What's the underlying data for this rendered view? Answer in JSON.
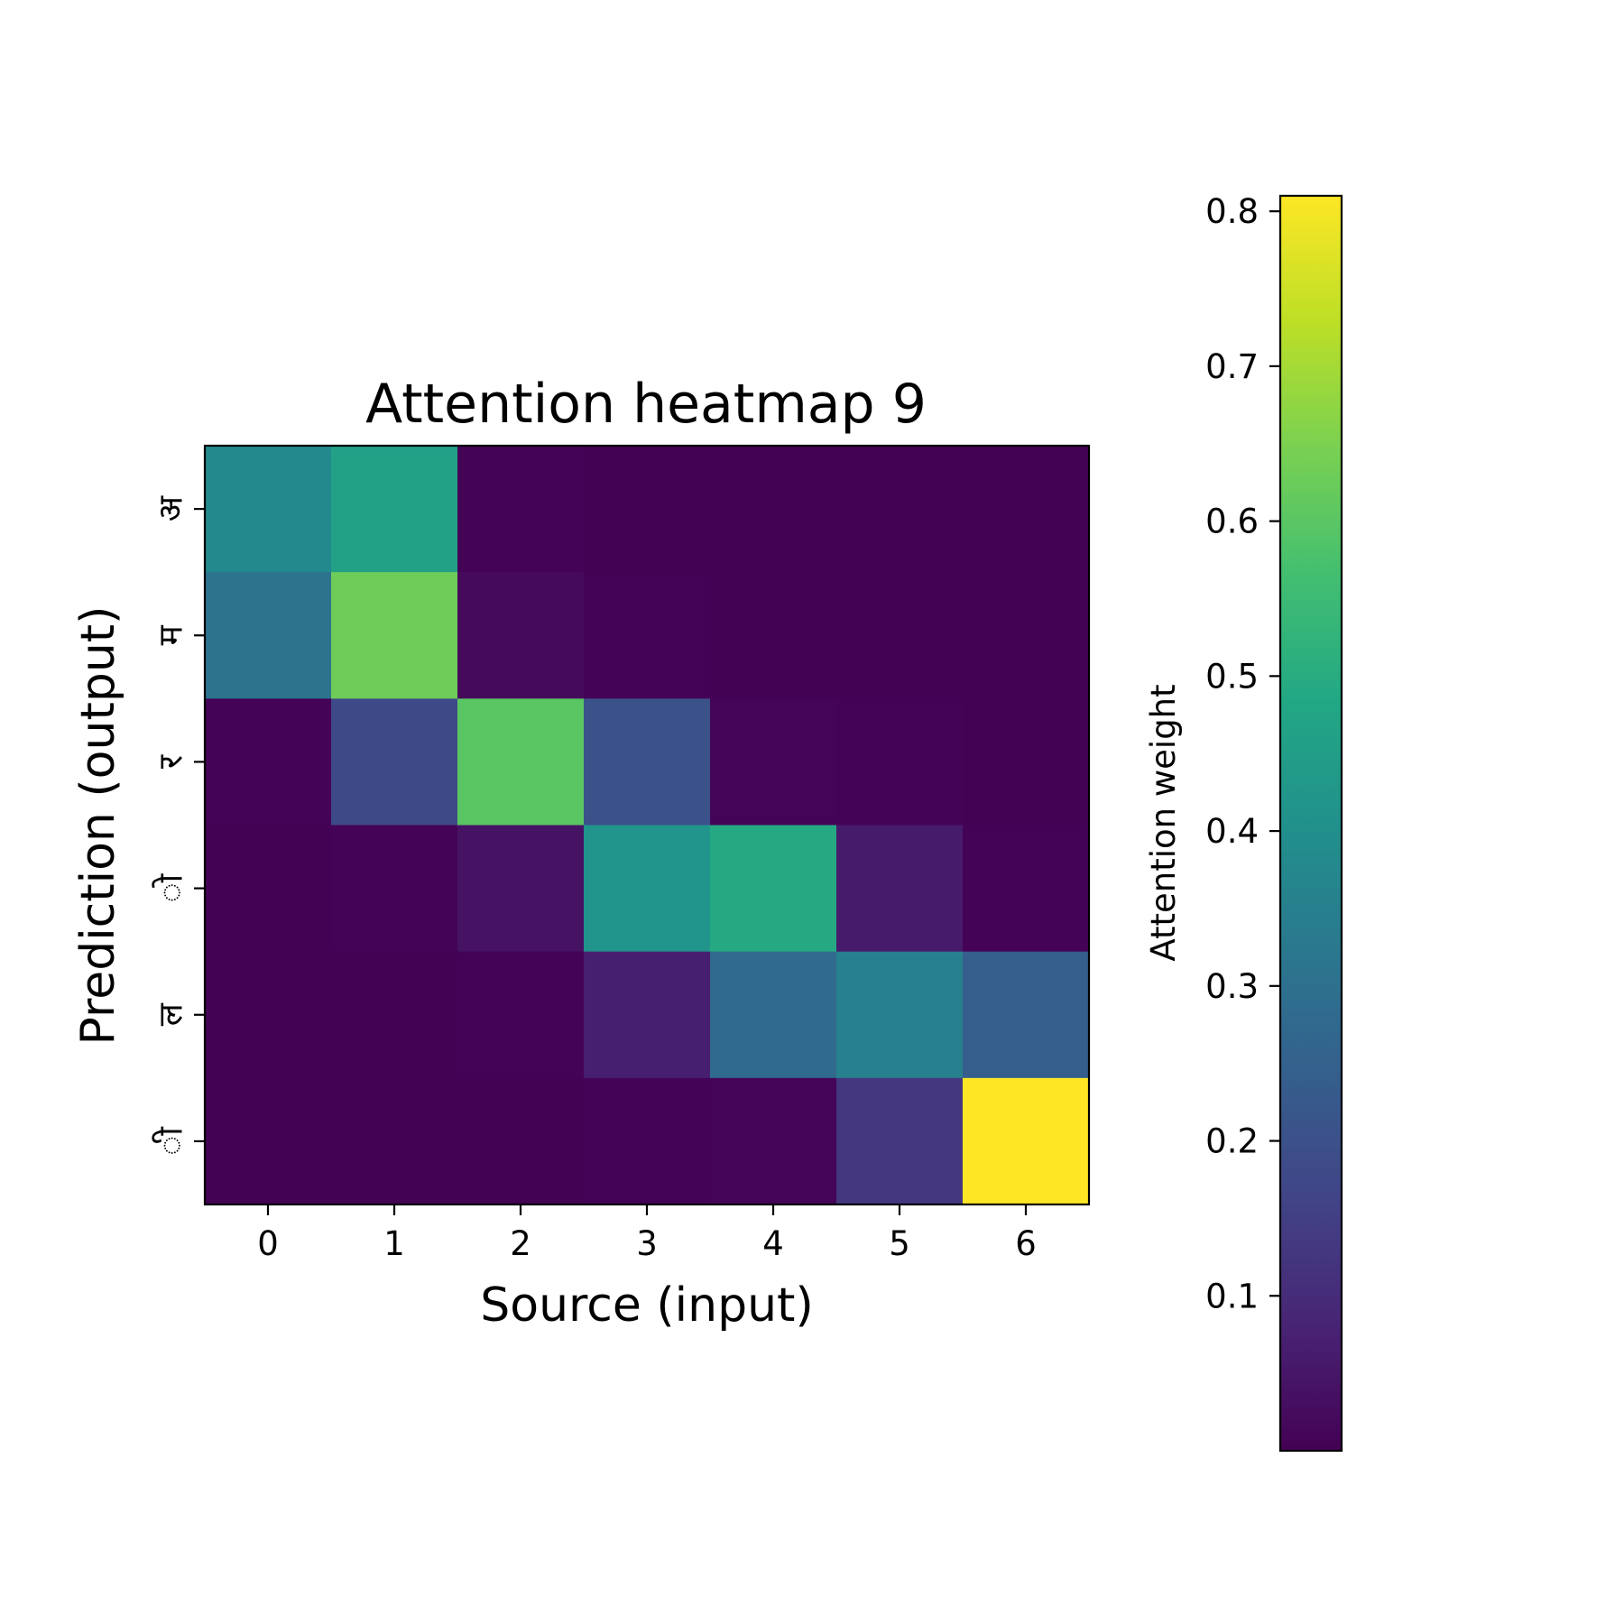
{
  "chart_data": {
    "type": "heatmap",
    "title": "Attention heatmap 9",
    "xlabel": "Source (input)",
    "ylabel": "Prediction (output)",
    "x_categories": [
      "0",
      "1",
      "2",
      "3",
      "4",
      "5",
      "6"
    ],
    "y_categories": [
      "अ",
      "म",
      "र",
      "ो",
      "ल",
      "ी"
    ],
    "values": [
      [
        0.38,
        0.46,
        0.005,
        0.003,
        0.002,
        0.002,
        0.002
      ],
      [
        0.31,
        0.63,
        0.02,
        0.005,
        0.003,
        0.002,
        0.002
      ],
      [
        0.005,
        0.18,
        0.6,
        0.2,
        0.01,
        0.004,
        0.003
      ],
      [
        0.003,
        0.004,
        0.04,
        0.42,
        0.49,
        0.06,
        0.004
      ],
      [
        0.002,
        0.003,
        0.005,
        0.07,
        0.28,
        0.35,
        0.24
      ],
      [
        0.002,
        0.002,
        0.003,
        0.005,
        0.01,
        0.13,
        0.81
      ]
    ],
    "colormap": "viridis",
    "vmin": 0.0,
    "vmax": 0.81,
    "colorbar": {
      "label": "Attention weight",
      "ticks": [
        0.1,
        0.2,
        0.3,
        0.4,
        0.5,
        0.6,
        0.7,
        0.8
      ],
      "tick_labels": [
        "0.1",
        "0.2",
        "0.3",
        "0.4",
        "0.5",
        "0.6",
        "0.7",
        "0.8"
      ]
    },
    "grid": false
  }
}
